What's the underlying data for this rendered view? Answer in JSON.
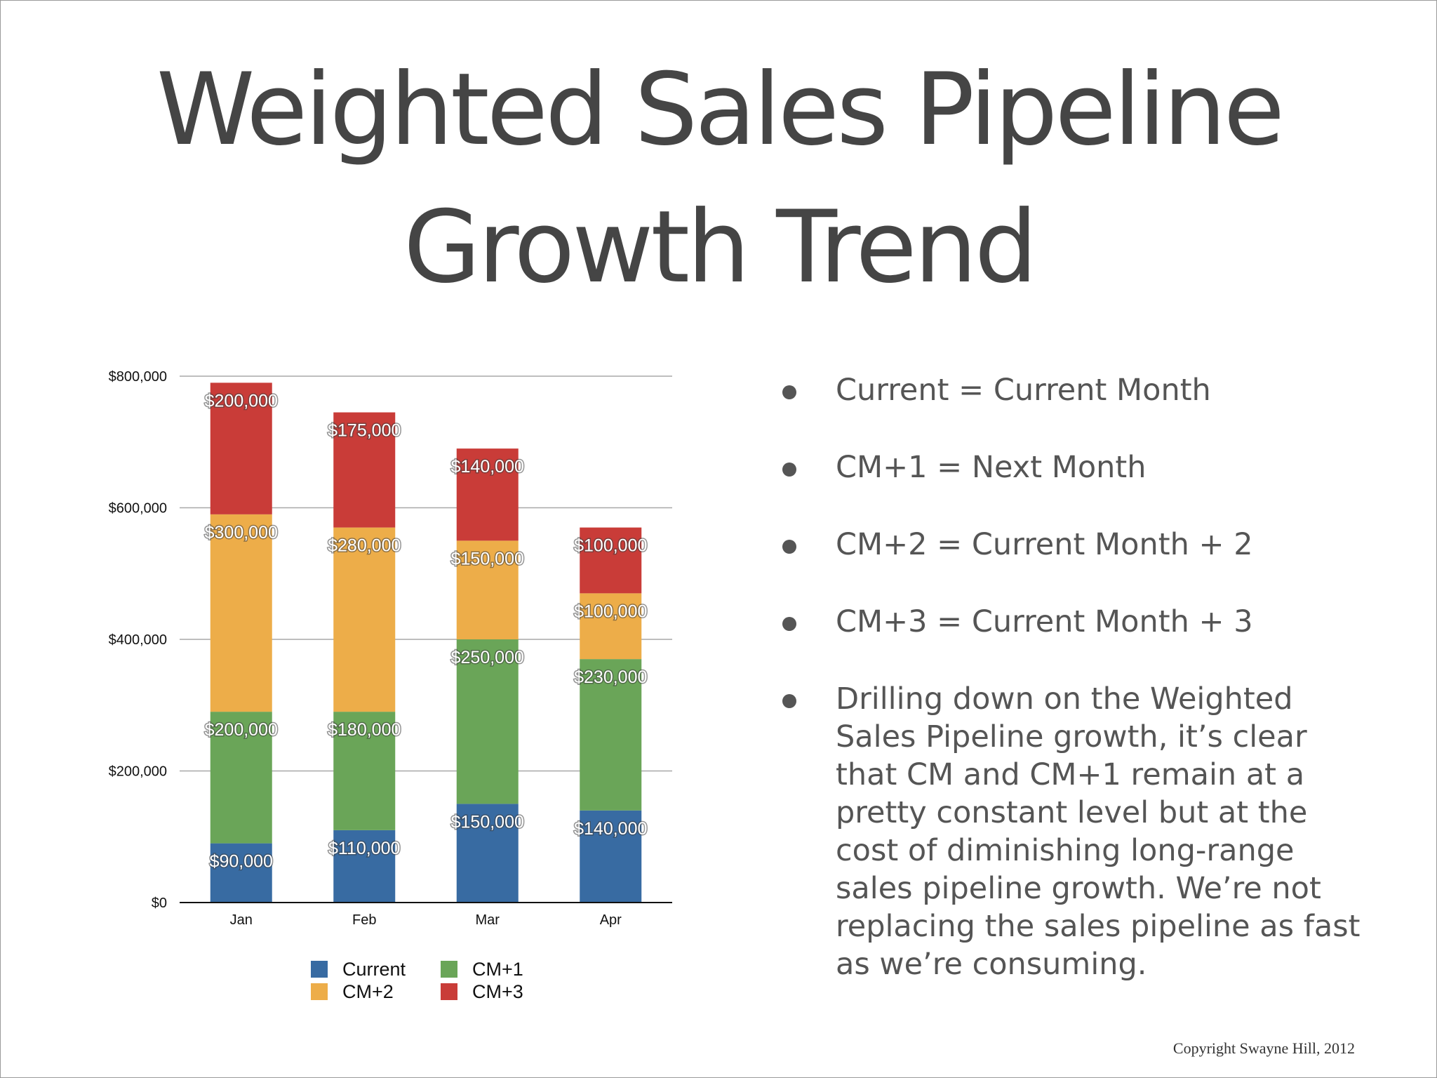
{
  "slide": {
    "title_line1": "Weighted Sales Pipeline",
    "title_line2": "Growth Trend",
    "bullets": [
      "Current = Current Month",
      "CM+1 = Next Month",
      "CM+2 = Current Month + 2",
      "CM+3 = Current Month + 3",
      "Drilling down on the Weighted Sales Pipeline growth, it’s clear that CM and CM+1 remain at a pretty constant level but at the cost of diminishing long-range sales pipeline growth.  We’re not replacing the sales pipeline as fast as we’re consuming."
    ],
    "copyright": "Copyright Swayne Hill, 2012"
  },
  "chart_data": {
    "type": "bar",
    "stacked": true,
    "categories": [
      "Jan",
      "Feb",
      "Mar",
      "Apr"
    ],
    "series": [
      {
        "name": "Current",
        "color": "#386ba2",
        "values": [
          90000,
          110000,
          150000,
          140000
        ],
        "labels": [
          "$90,000",
          "$110,000",
          "$150,000",
          "$140,000"
        ]
      },
      {
        "name": "CM+1",
        "color": "#6aa558",
        "values": [
          200000,
          180000,
          250000,
          230000
        ],
        "labels": [
          "$200,000",
          "$180,000",
          "$250,000",
          "$230,000"
        ]
      },
      {
        "name": "CM+2",
        "color": "#edad49",
        "values": [
          300000,
          280000,
          150000,
          100000
        ],
        "labels": [
          "$300,000",
          "$280,000",
          "$150,000",
          "$100,000"
        ]
      },
      {
        "name": "CM+3",
        "color": "#c93c38",
        "values": [
          200000,
          175000,
          140000,
          100000
        ],
        "labels": [
          "$200,000",
          "$175,000",
          "$140,000",
          "$100,000"
        ]
      }
    ],
    "ylim": [
      0,
      800000
    ],
    "yticks": [
      0,
      200000,
      400000,
      600000,
      800000
    ],
    "ytick_labels": [
      "$0",
      "$200,000",
      "$400,000",
      "$600,000",
      "$800,000"
    ],
    "legend_order": [
      "Current",
      "CM+1",
      "CM+2",
      "CM+3"
    ],
    "grid": true,
    "legend_position": "bottom"
  }
}
